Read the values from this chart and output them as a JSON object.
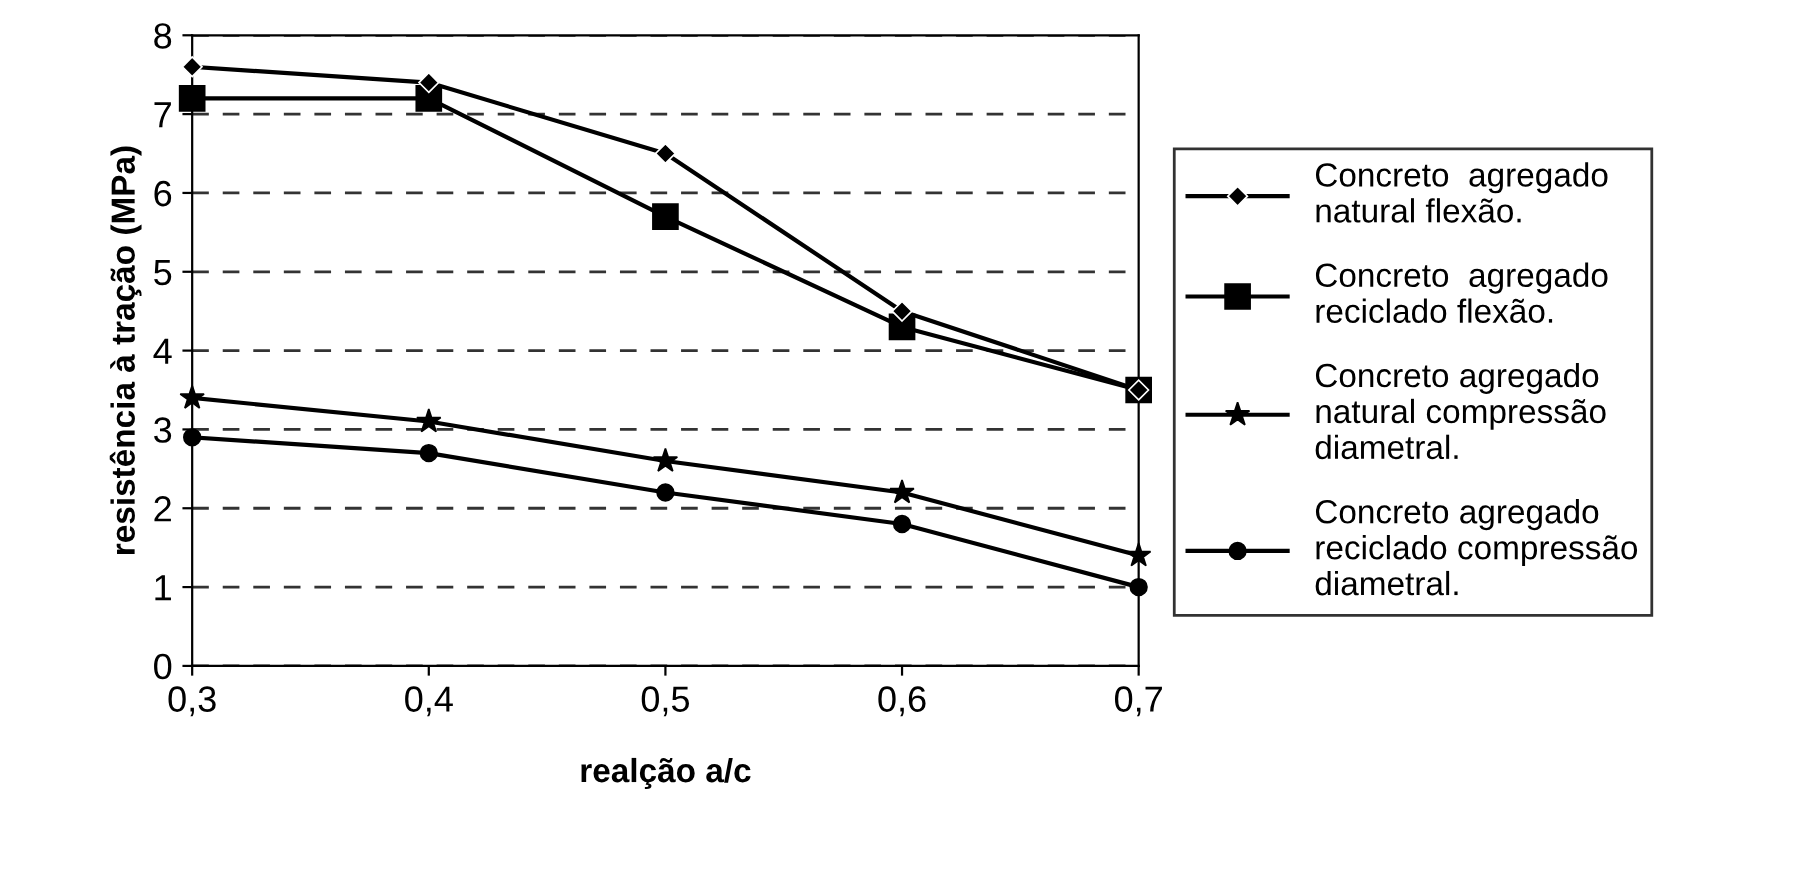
{
  "chart_data": {
    "type": "line",
    "xlabel": "realção a/c",
    "ylabel": "resistência à tração (MPa)",
    "x": [
      0.3,
      0.4,
      0.5,
      0.6,
      0.7
    ],
    "series": [
      {
        "name": "Concreto  agregado\nnatural flexão.",
        "color": "#000000",
        "marker": "diamond",
        "values": [
          7.6,
          7.4,
          6.5,
          4.5,
          3.5
        ]
      },
      {
        "name": "Concreto  agregado\nreciclado flexão.",
        "color": "#000000",
        "marker": "square",
        "values": [
          7.2,
          7.2,
          5.7,
          4.3,
          3.5
        ]
      },
      {
        "name": "Concreto agregado\nnatural compressão\ndiametral.",
        "color": "#000000",
        "marker": "star",
        "values": [
          3.4,
          3.1,
          2.6,
          2.2,
          1.4
        ]
      },
      {
        "name": "Concreto agregado\nreciclado compressão\ndiametral.",
        "color": "#000000",
        "marker": "circle",
        "values": [
          2.9,
          2.7,
          2.2,
          1.8,
          1.0
        ]
      }
    ],
    "xlim": [
      0.3,
      0.7
    ],
    "xticks": [
      {
        "value": 0.3,
        "label": "0,3"
      },
      {
        "value": 0.4,
        "label": "0,4"
      },
      {
        "value": 0.5,
        "label": "0,5"
      },
      {
        "value": 0.6,
        "label": "0,6"
      },
      {
        "value": 0.7,
        "label": "0,7"
      }
    ],
    "ylim": [
      0,
      8
    ],
    "yticks": [
      0,
      1,
      2,
      3,
      4,
      5,
      6,
      7,
      8
    ],
    "grid": "y",
    "legend": "right",
    "line_style": "solid"
  }
}
